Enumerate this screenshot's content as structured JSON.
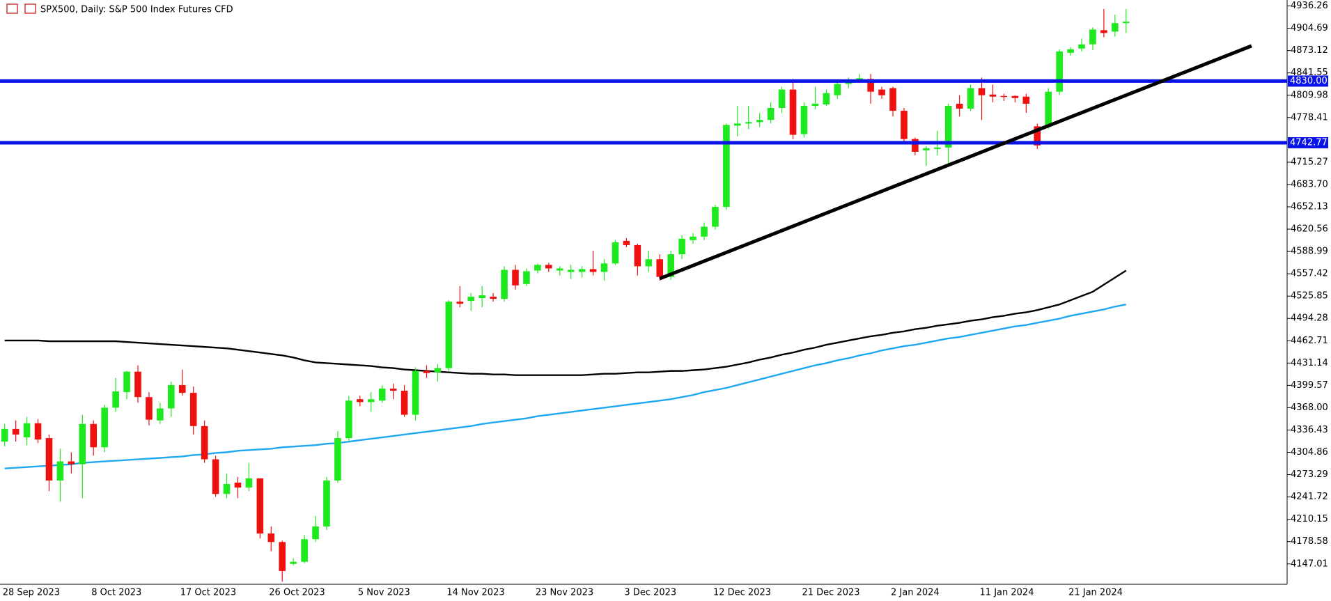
{
  "chart_data": {
    "type": "candlestick",
    "title": "SPX500, Daily:  S&P 500 Index Futures CFD",
    "categories": [
      "28 Sep 2023",
      null,
      null,
      null,
      null,
      null,
      null,
      null,
      "8 Oct 2023",
      null,
      null,
      null,
      null,
      null,
      null,
      null,
      "17 Oct 2023",
      null,
      null,
      null,
      null,
      null,
      null,
      null,
      "26 Oct 2023",
      null,
      null,
      null,
      null,
      null,
      null,
      null,
      "5 Nov 2023",
      null,
      null,
      null,
      null,
      null,
      null,
      null,
      "14 Nov 2023",
      null,
      null,
      null,
      null,
      null,
      null,
      null,
      "23 Nov 2023",
      null,
      null,
      null,
      null,
      null,
      null,
      null,
      "3 Dec 2023",
      null,
      null,
      null,
      null,
      null,
      null,
      null,
      "12 Dec 2023",
      null,
      null,
      null,
      null,
      null,
      null,
      null,
      "21 Dec 2023",
      null,
      null,
      null,
      null,
      null,
      null,
      null,
      "2 Jan 2024",
      null,
      null,
      null,
      null,
      null,
      null,
      null,
      "11 Jan 2024",
      null,
      null,
      null,
      null,
      null,
      null,
      null,
      "21 Jan 2024",
      null,
      null,
      null,
      null,
      null
    ],
    "up_color": "#1ee81e",
    "down_color": "#f01010",
    "open": [
      4320,
      4338,
      4326,
      4346,
      4325,
      4265,
      4292,
      4288,
      4345,
      4312,
      4368,
      4390,
      4419,
      4383,
      4350,
      4367,
      4400,
      4389,
      4342,
      4295,
      4246,
      4262,
      4255,
      4268,
      4190,
      4178,
      4147,
      4150,
      4182,
      4200,
      4265,
      4325,
      4380,
      4376,
      4378,
      4395,
      4392,
      4358,
      4420,
      4418,
      4424,
      4518,
      4519,
      4523,
      4525,
      4522,
      4563,
      4543,
      4562,
      4570,
      4562,
      4560,
      4560,
      4564,
      4560,
      4572,
      4604,
      4598,
      4568,
      4578,
      4553,
      4585,
      4605,
      4610,
      4624,
      4652,
      4767,
      4770,
      4772,
      4775,
      4792,
      4818,
      4755,
      4795,
      4797,
      4810,
      4826,
      4831,
      4833,
      4818,
      4820,
      4788,
      4748,
      4732,
      4734,
      4736,
      4798,
      4791,
      4820,
      4811,
      4809,
      4809,
      4808,
      4766,
      4766,
      4815,
      4870,
      4876,
      4882,
      4902,
      4900,
      4912
    ],
    "high": [
      4345,
      4350,
      4355,
      4352,
      4330,
      4310,
      4305,
      4358,
      4350,
      4372,
      4410,
      4420,
      4428,
      4390,
      4375,
      4405,
      4422,
      4398,
      4350,
      4300,
      4275,
      4270,
      4290,
      4268,
      4200,
      4180,
      4155,
      4188,
      4215,
      4270,
      4335,
      4385,
      4385,
      4390,
      4400,
      4402,
      4400,
      4425,
      4428,
      4430,
      4520,
      4540,
      4530,
      4540,
      4530,
      4568,
      4570,
      4565,
      4572,
      4573,
      4568,
      4570,
      4568,
      4590,
      4578,
      4605,
      4608,
      4600,
      4590,
      4585,
      4590,
      4612,
      4615,
      4630,
      4655,
      4770,
      4795,
      4795,
      4785,
      4800,
      4822,
      4828,
      4800,
      4822,
      4818,
      4830,
      4835,
      4840,
      4840,
      4822,
      4822,
      4792,
      4750,
      4738,
      4760,
      4798,
      4810,
      4825,
      4835,
      4825,
      4812,
      4810,
      4812,
      4770,
      4820,
      4875,
      4878,
      4890,
      4906,
      4932,
      4924,
      4932
    ],
    "low": [
      4313,
      4320,
      4315,
      4318,
      4250,
      4235,
      4275,
      4240,
      4300,
      4305,
      4362,
      4380,
      4375,
      4343,
      4345,
      4355,
      4385,
      4330,
      4290,
      4242,
      4240,
      4240,
      4250,
      4183,
      4165,
      4122,
      4145,
      4148,
      4178,
      4195,
      4262,
      4320,
      4370,
      4362,
      4375,
      4380,
      4355,
      4350,
      4410,
      4405,
      4420,
      4510,
      4505,
      4510,
      4518,
      4518,
      4535,
      4540,
      4558,
      4560,
      4555,
      4550,
      4552,
      4555,
      4548,
      4570,
      4595,
      4555,
      4560,
      4548,
      4549,
      4578,
      4600,
      4605,
      4620,
      4648,
      4752,
      4762,
      4765,
      4770,
      4785,
      4748,
      4750,
      4790,
      4795,
      4805,
      4820,
      4830,
      4798,
      4805,
      4780,
      4745,
      4725,
      4710,
      4725,
      4712,
      4780,
      4788,
      4775,
      4800,
      4802,
      4800,
      4785,
      4734,
      4762,
      4810,
      4866,
      4872,
      4874,
      4892,
      4893,
      4898
    ],
    "close": [
      4338,
      4330,
      4346,
      4323,
      4265,
      4292,
      4288,
      4345,
      4312,
      4368,
      4391,
      4419,
      4383,
      4351,
      4367,
      4400,
      4389,
      4342,
      4295,
      4246,
      4260,
      4255,
      4268,
      4190,
      4178,
      4137,
      4150,
      4182,
      4200,
      4265,
      4325,
      4378,
      4376,
      4380,
      4395,
      4392,
      4358,
      4420,
      4417,
      4424,
      4518,
      4515,
      4525,
      4527,
      4522,
      4563,
      4541,
      4561,
      4570,
      4565,
      4565,
      4563,
      4564,
      4560,
      4572,
      4602,
      4598,
      4568,
      4578,
      4553,
      4585,
      4607,
      4610,
      4624,
      4652,
      4768,
      4770,
      4772,
      4775,
      4792,
      4818,
      4754,
      4795,
      4798,
      4813,
      4826,
      4832,
      4834,
      4815,
      4810,
      4788,
      4748,
      4730,
      4735,
      4736,
      4795,
      4791,
      4820,
      4810,
      4808,
      4808,
      4806,
      4798,
      4739,
      4815,
      4872,
      4875,
      4882,
      4903,
      4898,
      4912,
      4914
    ],
    "lines": [
      {
        "color": "#000000",
        "values": [
          4463,
          4463,
          4463,
          4463,
          4462,
          4462,
          4462,
          4462,
          4462,
          4462,
          4462,
          4461,
          4460,
          4459,
          4458,
          4457,
          4456,
          4455,
          4454,
          4453,
          4452,
          4450,
          4448,
          4446,
          4444,
          4442,
          4439,
          4435,
          4432,
          4431,
          4430,
          4429,
          4428,
          4427,
          4425,
          4424,
          4422,
          4421,
          4420,
          4419,
          4418,
          4417,
          4416,
          4416,
          4415,
          4415,
          4414,
          4414,
          4414,
          4414,
          4414,
          4414,
          4414,
          4415,
          4416,
          4416,
          4417,
          4418,
          4418,
          4419,
          4420,
          4420,
          4421,
          4422,
          4424,
          4426,
          4429,
          4432,
          4436,
          4439,
          4443,
          4446,
          4450,
          4453,
          4457,
          4460,
          4463,
          4466,
          4469,
          4471,
          4474,
          4476,
          4479,
          4481,
          4484,
          4486,
          4488,
          4491,
          4493,
          4496,
          4498,
          4501,
          4503,
          4506,
          4510,
          4514,
          4520,
          4526,
          4532,
          4542,
          4552,
          4562
        ]
      },
      {
        "color": "#1ea8f0",
        "values": [
          4282,
          4283,
          4284,
          4285,
          4286,
          4287,
          4288,
          4290,
          4291,
          4292,
          4293,
          4294,
          4295,
          4296,
          4297,
          4298,
          4299,
          4301,
          4302,
          4304,
          4305,
          4307,
          4308,
          4309,
          4310,
          4312,
          4313,
          4314,
          4315,
          4317,
          4318,
          4320,
          4322,
          4324,
          4326,
          4328,
          4330,
          4332,
          4334,
          4336,
          4338,
          4340,
          4342,
          4345,
          4347,
          4349,
          4351,
          4353,
          4356,
          4358,
          4360,
          4362,
          4364,
          4366,
          4368,
          4370,
          4372,
          4374,
          4376,
          4378,
          4380,
          4383,
          4386,
          4390,
          4393,
          4396,
          4400,
          4404,
          4408,
          4412,
          4416,
          4420,
          4424,
          4428,
          4431,
          4435,
          4438,
          4442,
          4445,
          4449,
          4452,
          4455,
          4457,
          4460,
          4463,
          4466,
          4468,
          4471,
          4474,
          4477,
          4480,
          4483,
          4485,
          4488,
          4491,
          4494,
          4498,
          4501,
          4504,
          4507,
          4511,
          4514
        ]
      }
    ],
    "levels": [
      {
        "value": 4830,
        "label": "4830.00",
        "color": "#0a14e6"
      },
      {
        "value": 4742.77,
        "color": "#0a14e6"
      }
    ],
    "trendline": {
      "color": "#000000",
      "values": [
        4550.6,
        4879.8
      ]
    },
    "ylim": [
      4118.2,
      4944.7
    ],
    "yticks": [
      4147.01,
      4178.58,
      4210.15,
      4241.72,
      4273.29,
      4304.86,
      4336.43,
      {
        "value": 4368,
        "label": "4368.00"
      },
      4399.57,
      4431.14,
      4462.71,
      4494.28,
      4525.85,
      4557.42,
      4588.99,
      4620.56,
      4652.13,
      {
        "value": 4683.7,
        "label": "4683.70"
      },
      4715.27,
      4778.41,
      4809.98,
      4841.55,
      4873.12,
      4904.69,
      4936.26
    ]
  }
}
